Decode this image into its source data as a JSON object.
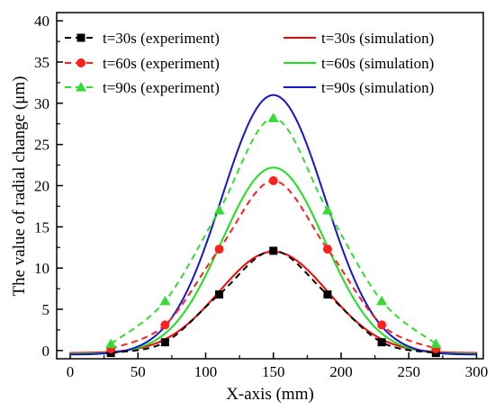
{
  "chart_data": {
    "type": "line",
    "xlabel": "X-axis (mm)",
    "ylabel": "The value of radial change (μm)",
    "xlim": [
      -10,
      305
    ],
    "ylim": [
      -1,
      41
    ],
    "x_ticks": [
      0,
      50,
      100,
      150,
      200,
      250,
      300
    ],
    "y_ticks": [
      0,
      5,
      10,
      15,
      20,
      25,
      30,
      35,
      40
    ],
    "x_tick_labels": [
      "0",
      "50",
      "100",
      "150",
      "200",
      "250",
      "300"
    ],
    "y_tick_labels": [
      "0",
      "5",
      "10",
      "15",
      "20",
      "25",
      "30",
      "35",
      "40"
    ],
    "grid": false,
    "legend_position": "top",
    "series": [
      {
        "name": "t=30s (experiment)",
        "kind": "experiment",
        "color": "#000000",
        "marker": "square",
        "line_style": "dashed",
        "x": [
          30,
          70,
          110,
          150,
          190,
          230,
          270
        ],
        "y": [
          -0.3,
          1.0,
          6.8,
          12.1,
          6.8,
          1.0,
          -0.3
        ]
      },
      {
        "name": "t=60s (experiment)",
        "kind": "experiment",
        "color": "#ff2020",
        "marker": "circle",
        "line_style": "dashed",
        "x": [
          30,
          70,
          110,
          150,
          190,
          230,
          270
        ],
        "y": [
          0.2,
          3.1,
          12.3,
          20.6,
          12.3,
          3.1,
          0.2
        ]
      },
      {
        "name": "t=90s (experiment)",
        "kind": "experiment",
        "color": "#33dd33",
        "marker": "triangle",
        "line_style": "dashed",
        "x": [
          30,
          70,
          110,
          150,
          190,
          230,
          270
        ],
        "y": [
          0.8,
          6.0,
          17.0,
          28.2,
          17.0,
          6.0,
          0.8
        ]
      },
      {
        "name": "t=30s (simulation)",
        "kind": "simulation",
        "color": "#ff0000",
        "marker": "none",
        "line_style": "solid",
        "peak_x": 150,
        "peak_y": 12.0,
        "baseline": -0.3,
        "width": 40
      },
      {
        "name": "t=60s (simulation)",
        "kind": "simulation",
        "color": "#22dd22",
        "marker": "none",
        "line_style": "solid",
        "peak_x": 150,
        "peak_y": 22.2,
        "baseline": -0.4,
        "width": 38
      },
      {
        "name": "t=90s (simulation)",
        "kind": "simulation",
        "color": "#1515cc",
        "marker": "none",
        "line_style": "solid",
        "peak_x": 150,
        "peak_y": 31.0,
        "baseline": -0.5,
        "width": 38
      }
    ]
  }
}
